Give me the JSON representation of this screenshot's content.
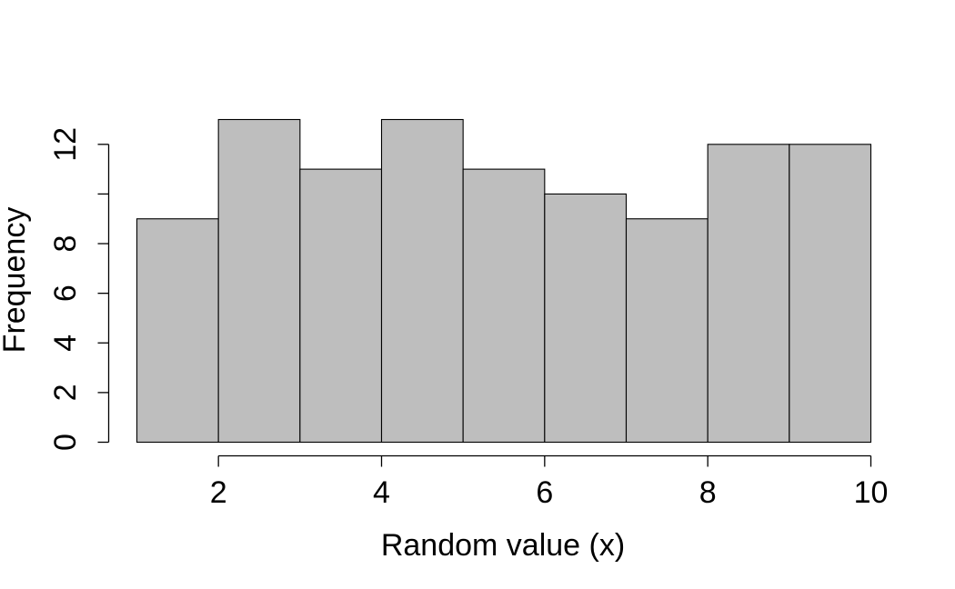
{
  "chart_data": {
    "type": "bar",
    "subtype": "histogram",
    "title": "",
    "xlabel": "Random value (x)",
    "ylabel": "Frequency",
    "bins": [
      {
        "start": 1,
        "end": 2,
        "count": 9
      },
      {
        "start": 2,
        "end": 3,
        "count": 13
      },
      {
        "start": 3,
        "end": 4,
        "count": 11
      },
      {
        "start": 4,
        "end": 5,
        "count": 13
      },
      {
        "start": 5,
        "end": 6,
        "count": 11
      },
      {
        "start": 6,
        "end": 7,
        "count": 10
      },
      {
        "start": 7,
        "end": 8,
        "count": 9
      },
      {
        "start": 8,
        "end": 9,
        "count": 12
      },
      {
        "start": 9,
        "end": 10,
        "count": 12
      }
    ],
    "xlim": [
      1,
      10
    ],
    "ylim": [
      0,
      13
    ],
    "x_axis_range": [
      2,
      10
    ],
    "y_axis_range": [
      0,
      12
    ],
    "x_ticks": [
      2,
      4,
      6,
      8,
      10
    ],
    "x_tick_labels": [
      "2",
      "4",
      "6",
      "8",
      "10"
    ],
    "y_ticks": [
      0,
      2,
      4,
      6,
      8,
      10,
      12
    ],
    "y_tick_labels": [
      "0",
      "2",
      "4",
      "6",
      "8",
      "",
      "12"
    ],
    "bar_fill": "#bebebe",
    "bar_edge": "#000000",
    "grid": false,
    "legend": "none"
  }
}
